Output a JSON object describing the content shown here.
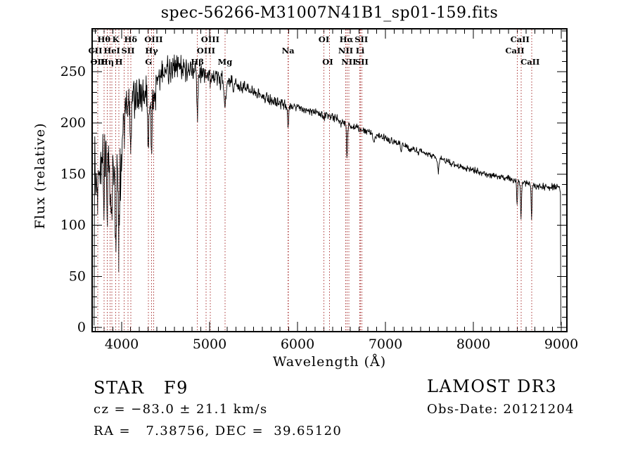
{
  "chart_data": {
    "type": "line",
    "title": "spec-56266-M31007N41B1_sp01-159.fits",
    "xlabel": "Wavelength (Å)",
    "ylabel": "Flux (relative)",
    "xlim": [
      3664,
      9064
    ],
    "ylim": [
      -4,
      292
    ],
    "xticks": [
      4000,
      5000,
      6000,
      7000,
      8000,
      9000
    ],
    "yticks": [
      0,
      50,
      100,
      150,
      200,
      250
    ],
    "x_minor_step": 100,
    "y_minor_step": 10,
    "grid": false,
    "legend": "none",
    "colors": {
      "spectrum": "#000000",
      "marker": "#aa3535",
      "frame": "#000000",
      "text": "#000000",
      "background": "#ffffff"
    },
    "markers": [
      3727,
      3798,
      3835,
      3869,
      3889,
      3933,
      3968,
      4026,
      4072,
      4102,
      4305,
      4340,
      4363,
      4861,
      4959,
      5007,
      5175,
      5890,
      5896,
      6300,
      6364,
      6548,
      6563,
      6583,
      6708,
      6717,
      6731,
      8498,
      8542,
      8662
    ],
    "line_labels": [
      {
        "text": "Hθ",
        "x": 3798,
        "row": 0
      },
      {
        "text": "K",
        "x": 3933,
        "row": 0
      },
      {
        "text": "Hδ",
        "x": 4102,
        "row": 0
      },
      {
        "text": "OIII",
        "x": 4363,
        "row": 0
      },
      {
        "text": "OIII",
        "x": 5007,
        "row": 0
      },
      {
        "text": "OI",
        "x": 6300,
        "row": 0
      },
      {
        "text": "Hα",
        "x": 6556,
        "row": 0
      },
      {
        "text": "SII",
        "x": 6726,
        "row": 0
      },
      {
        "text": "CaII",
        "x": 8530,
        "row": 0
      },
      {
        "text": "CII",
        "x": 3700,
        "row": 1
      },
      {
        "text": "HeI",
        "x": 3889,
        "row": 1
      },
      {
        "text": "SII",
        "x": 4072,
        "row": 1
      },
      {
        "text": "Hγ",
        "x": 4340,
        "row": 1
      },
      {
        "text": "OIII",
        "x": 4959,
        "row": 1
      },
      {
        "text": "Na",
        "x": 5893,
        "row": 1
      },
      {
        "text": "NII",
        "x": 6548,
        "row": 1
      },
      {
        "text": "Li",
        "x": 6712,
        "row": 1
      },
      {
        "text": "CaII",
        "x": 8472,
        "row": 1
      },
      {
        "text": "OII",
        "x": 3727,
        "row": 2
      },
      {
        "text": "Hη",
        "x": 3835,
        "row": 2
      },
      {
        "text": "H",
        "x": 3968,
        "row": 2
      },
      {
        "text": "G",
        "x": 4305,
        "row": 2
      },
      {
        "text": "Hβ",
        "x": 4861,
        "row": 2
      },
      {
        "text": "Mg",
        "x": 5175,
        "row": 2
      },
      {
        "text": "OI",
        "x": 6344,
        "row": 2
      },
      {
        "text": "NII",
        "x": 6583,
        "row": 2
      },
      {
        "text": "SII",
        "x": 6731,
        "row": 2
      },
      {
        "text": "CaII",
        "x": 8646,
        "row": 2
      }
    ],
    "spectrum_start": [
      3686,
      2
    ],
    "end_drop": [
      8995,
      2
    ],
    "sample_step": 4,
    "continuum": [
      [
        3686,
        150
      ],
      [
        3720,
        158
      ],
      [
        3750,
        165
      ],
      [
        3780,
        170
      ],
      [
        3810,
        170
      ],
      [
        3840,
        163
      ],
      [
        3870,
        158
      ],
      [
        3900,
        163
      ],
      [
        3930,
        162
      ],
      [
        3960,
        152
      ],
      [
        3990,
        150
      ],
      [
        4010,
        192
      ],
      [
        4040,
        212
      ],
      [
        4070,
        220
      ],
      [
        4100,
        224
      ],
      [
        4150,
        228
      ],
      [
        4200,
        230
      ],
      [
        4250,
        229
      ],
      [
        4300,
        229
      ],
      [
        4350,
        233
      ],
      [
        4400,
        241
      ],
      [
        4450,
        248
      ],
      [
        4500,
        252
      ],
      [
        4550,
        254
      ],
      [
        4600,
        256
      ],
      [
        4650,
        255
      ],
      [
        4700,
        253
      ],
      [
        4750,
        251
      ],
      [
        4800,
        251
      ],
      [
        4861,
        250
      ],
      [
        4900,
        249
      ],
      [
        4950,
        248
      ],
      [
        5000,
        247
      ],
      [
        5050,
        245
      ],
      [
        5100,
        243
      ],
      [
        5175,
        240
      ],
      [
        5250,
        241
      ],
      [
        5400,
        234
      ],
      [
        5550,
        228
      ],
      [
        5700,
        222
      ],
      [
        5850,
        218
      ],
      [
        6000,
        215
      ],
      [
        6150,
        211
      ],
      [
        6300,
        208
      ],
      [
        6450,
        204
      ],
      [
        6600,
        197
      ],
      [
        6750,
        193
      ],
      [
        6900,
        188
      ],
      [
        7050,
        183
      ],
      [
        7200,
        178
      ],
      [
        7350,
        173
      ],
      [
        7500,
        169
      ],
      [
        7650,
        164
      ],
      [
        7800,
        159
      ],
      [
        7950,
        155
      ],
      [
        8100,
        151
      ],
      [
        8250,
        148
      ],
      [
        8400,
        146
      ],
      [
        8550,
        142
      ],
      [
        8700,
        139
      ],
      [
        8850,
        137
      ],
      [
        8950,
        138
      ],
      [
        8995,
        134
      ]
    ],
    "absorption_dips": [
      [
        3727,
        45,
        5
      ],
      [
        3750,
        30,
        4
      ],
      [
        3798,
        55,
        5
      ],
      [
        3835,
        62,
        5
      ],
      [
        3869,
        48,
        4
      ],
      [
        3889,
        58,
        5
      ],
      [
        3933,
        72,
        6
      ],
      [
        3968,
        72,
        6
      ],
      [
        4026,
        22,
        4
      ],
      [
        4072,
        18,
        4
      ],
      [
        4102,
        50,
        6
      ],
      [
        4227,
        15,
        4
      ],
      [
        4305,
        42,
        9
      ],
      [
        4340,
        52,
        6
      ],
      [
        4363,
        15,
        4
      ],
      [
        4383,
        14,
        4
      ],
      [
        4861,
        48,
        6
      ],
      [
        4959,
        6,
        4
      ],
      [
        5007,
        7,
        4
      ],
      [
        5175,
        22,
        10
      ],
      [
        5270,
        8,
        6
      ],
      [
        5893,
        22,
        6
      ],
      [
        6300,
        6,
        4
      ],
      [
        6495,
        6,
        4
      ],
      [
        6563,
        32,
        6
      ],
      [
        6870,
        10,
        7
      ],
      [
        7180,
        6,
        6
      ],
      [
        7600,
        13,
        8
      ],
      [
        8498,
        25,
        5
      ],
      [
        8542,
        38,
        5
      ],
      [
        8662,
        33,
        5
      ]
    ],
    "noise_regions": [
      [
        3686,
        4000,
        42
      ],
      [
        4000,
        4400,
        24
      ],
      [
        4400,
        4800,
        17
      ],
      [
        4800,
        5150,
        12
      ],
      [
        5150,
        5900,
        7
      ],
      [
        5900,
        6560,
        5
      ],
      [
        6560,
        7400,
        4.5
      ],
      [
        7400,
        8400,
        4
      ],
      [
        8400,
        8996,
        4.5
      ]
    ]
  },
  "annotations": {
    "class_line": "STAR   F9",
    "cz_line": "cz = −83.0 ± 21.1 km/s",
    "radec_line": "RA =   7.38756, DEC =  39.65120",
    "survey": "LAMOST DR3",
    "obs_date": "Obs-Date: 20121204"
  }
}
